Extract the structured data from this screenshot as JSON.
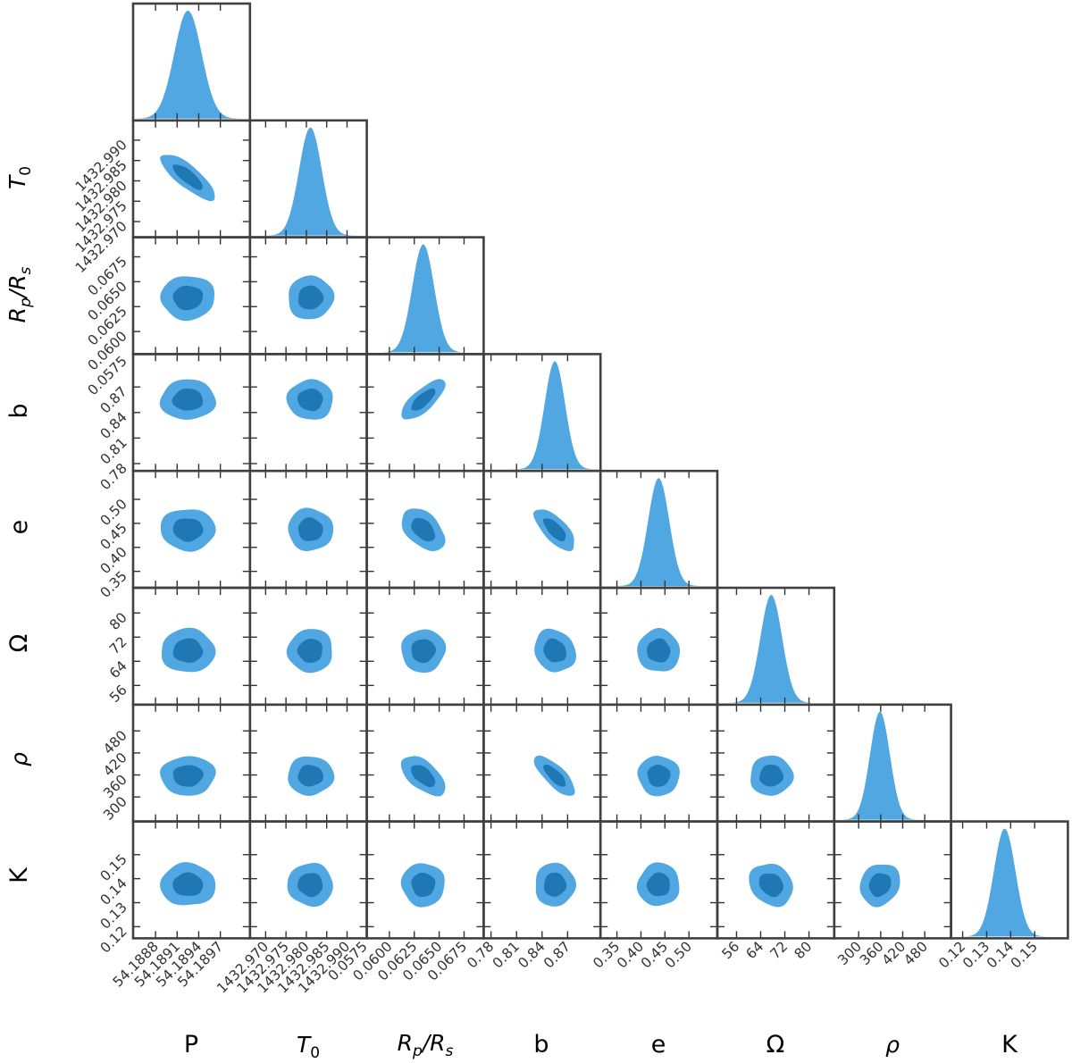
{
  "chart_data": {
    "type": "corner",
    "title": "",
    "params": [
      {
        "key": "P",
        "label": "P",
        "mean": 54.18925,
        "sd": 0.00019,
        "range": [
          54.18865,
          54.18995
        ],
        "ticks": [
          54.1888,
          54.1891,
          54.1894,
          54.1897
        ],
        "tick_labels": [
          "54.1888",
          "54.1891",
          "54.1894",
          "54.1897"
        ]
      },
      {
        "key": "T0",
        "label": "T_0",
        "mean": 1432.981,
        "sd": 0.0028,
        "range": [
          1432.969,
          1432.992
        ],
        "ticks": [
          1432.97,
          1432.975,
          1432.98,
          1432.985,
          1432.99
        ],
        "tick_labels": [
          "1432.970",
          "1432.975",
          "1432.980",
          "1432.985",
          "1432.990"
        ]
      },
      {
        "key": "RpRs",
        "label": "R_p/R_s",
        "mean": 0.0634,
        "sd": 0.0011,
        "range": [
          0.0589,
          0.0683
        ],
        "ticks": [
          0.0575,
          0.06,
          0.0625,
          0.065,
          0.0675
        ],
        "tick_labels": [
          "0.0575",
          "0.0600",
          "0.0625",
          "0.0650",
          "0.0675"
        ]
      },
      {
        "key": "b",
        "label": "b",
        "mean": 0.855,
        "sd": 0.012,
        "range": [
          0.785,
          0.895
        ],
        "ticks": [
          0.78,
          0.81,
          0.84,
          0.87
        ],
        "tick_labels": [
          "0.78",
          "0.81",
          "0.84",
          "0.87"
        ]
      },
      {
        "key": "e",
        "label": "e",
        "mean": 0.437,
        "sd": 0.022,
        "range": [
          0.34,
          0.535
        ],
        "ticks": [
          0.35,
          0.4,
          0.45,
          0.5
        ],
        "tick_labels": [
          "0.35",
          "0.40",
          "0.45",
          "0.50"
        ]
      },
      {
        "key": "Omega",
        "label": "Ω",
        "mean": 67.5,
        "sd": 3.6,
        "range": [
          53.5,
          84.5
        ],
        "ticks": [
          56,
          64,
          72,
          80
        ],
        "tick_labels": [
          "56",
          "64",
          "72",
          "80"
        ]
      },
      {
        "key": "rho",
        "label": "ρ",
        "mean": 358,
        "sd": 27,
        "range": [
          265,
          520
        ],
        "ticks": [
          300,
          360,
          420,
          480
        ],
        "tick_labels": [
          "300",
          "360",
          "420",
          "480"
        ]
      },
      {
        "key": "K",
        "label": "K",
        "mean": 0.1375,
        "sd": 0.0045,
        "range": [
          0.12,
          0.159
        ],
        "ticks": [
          0.12,
          0.13,
          0.14,
          0.15
        ],
        "tick_labels": [
          "0.12",
          "0.13",
          "0.14",
          "0.15"
        ]
      }
    ],
    "correlations": [
      {
        "pair": [
          "P",
          "T0"
        ],
        "rho": -0.8
      },
      {
        "pair": [
          "RpRs",
          "b"
        ],
        "rho": 0.75
      },
      {
        "pair": [
          "RpRs",
          "e"
        ],
        "rho": -0.45
      },
      {
        "pair": [
          "b",
          "e"
        ],
        "rho": -0.7
      },
      {
        "pair": [
          "RpRs",
          "rho"
        ],
        "rho": -0.55
      },
      {
        "pair": [
          "b",
          "rho"
        ],
        "rho": -0.75
      },
      {
        "pair": [
          "b",
          "Omega"
        ],
        "rho": -0.15
      },
      {
        "pair": [
          "Omega",
          "K"
        ],
        "rho": -0.2
      },
      {
        "pair": [
          "rho",
          "K"
        ],
        "rho": 0.15
      }
    ],
    "contour_levels_sigma": [
      1,
      2
    ],
    "colors": {
      "inner": "#1f77b4",
      "outer": "#51a7e1",
      "histogram": "#51a7e1",
      "frame": "#404040",
      "tick": "#333333"
    }
  }
}
